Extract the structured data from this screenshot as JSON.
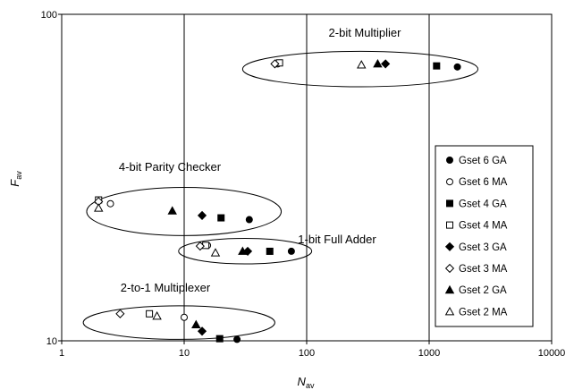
{
  "chart_data": {
    "type": "scatter",
    "title": "",
    "xlabel": "N",
    "xlabel_sub": "av",
    "ylabel": "F",
    "ylabel_sub": "av",
    "xscale": "log",
    "yscale": "log",
    "xlim": [
      1,
      10000
    ],
    "ylim": [
      10,
      100
    ],
    "x_ticks": [
      "1",
      "10",
      "100",
      "1000",
      "10000"
    ],
    "y_ticks": [
      "10",
      "100"
    ],
    "grid": "vertical major lines",
    "legend_position": "right",
    "groups": [
      {
        "label": "2-bit Multiplier",
        "ellipse_x": [
          30,
          2500
        ],
        "ellipse_y": [
          60,
          77
        ]
      },
      {
        "label": "4-bit Parity Checker",
        "ellipse_x": [
          1.6,
          62
        ],
        "ellipse_y": [
          21,
          29.5
        ]
      },
      {
        "label": "1-bit Full Adder",
        "ellipse_x": [
          9,
          110
        ],
        "ellipse_y": [
          17.2,
          20.6
        ]
      },
      {
        "label": "2-to-1 Multiplexer",
        "ellipse_x": [
          1.5,
          55
        ],
        "ellipse_y": [
          10.1,
          12.8
        ]
      }
    ],
    "series": [
      {
        "name": "Gset 6 GA",
        "marker": "circle",
        "filled": true,
        "points": [
          [
            1700,
            69
          ],
          [
            34,
            23.5
          ],
          [
            75,
            18.8
          ],
          [
            27,
            10.1
          ]
        ]
      },
      {
        "name": "Gset 6 MA",
        "marker": "circle",
        "filled": false,
        "points": [
          [
            58,
            70.5
          ],
          [
            2.5,
            26.3
          ],
          [
            15.5,
            19.6
          ],
          [
            10,
            11.8
          ]
        ]
      },
      {
        "name": "Gset 4 GA",
        "marker": "square",
        "filled": true,
        "points": [
          [
            1150,
            69.5
          ],
          [
            20,
            23.8
          ],
          [
            50,
            18.8
          ],
          [
            19.5,
            10.15
          ]
        ]
      },
      {
        "name": "Gset 4 MA",
        "marker": "square",
        "filled": false,
        "points": [
          [
            60,
            71
          ],
          [
            2,
            27
          ],
          [
            15,
            19.6
          ],
          [
            5.2,
            12.1
          ]
        ]
      },
      {
        "name": "Gset 3 GA",
        "marker": "diamond",
        "filled": true,
        "points": [
          [
            440,
            70.5
          ],
          [
            14,
            24.2
          ],
          [
            33,
            18.8
          ],
          [
            14,
            10.7
          ]
        ]
      },
      {
        "name": "Gset 3 MA",
        "marker": "diamond",
        "filled": false,
        "points": [
          [
            55,
            70.5
          ],
          [
            2,
            26.7
          ],
          [
            13.5,
            19.5
          ],
          [
            3,
            12.1
          ]
        ]
      },
      {
        "name": "Gset 2 GA",
        "marker": "triangle",
        "filled": true,
        "points": [
          [
            380,
            70.5
          ],
          [
            8,
            25
          ],
          [
            30,
            18.8
          ],
          [
            12.5,
            11.2
          ]
        ]
      },
      {
        "name": "Gset 2 MA",
        "marker": "triangle",
        "filled": false,
        "points": [
          [
            280,
            70
          ],
          [
            2,
            25.5
          ],
          [
            18,
            18.6
          ],
          [
            6,
            11.9
          ]
        ]
      }
    ]
  }
}
